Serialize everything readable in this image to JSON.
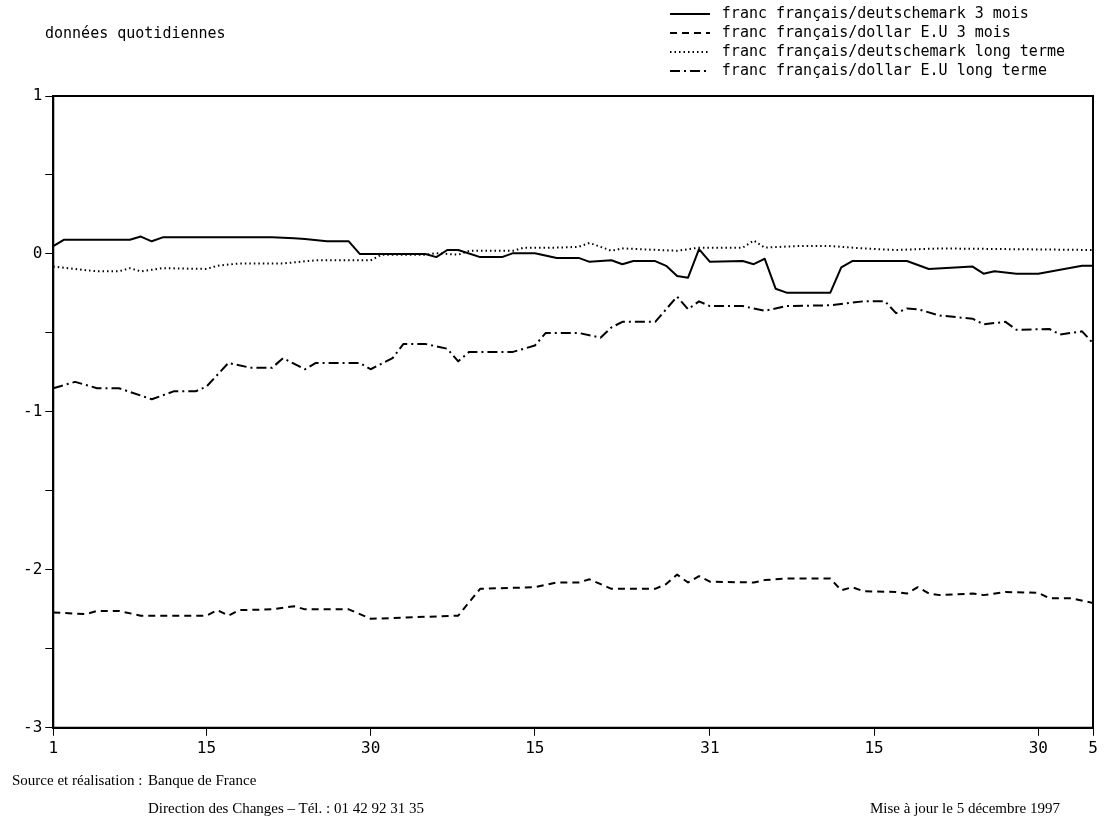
{
  "chart_data": {
    "type": "line",
    "title": "données quotidiennes",
    "xlim": [
      "1997-09-01",
      "1997-12-05"
    ],
    "xticks": [
      {
        "value": "1997-09-01",
        "label": "1"
      },
      {
        "value": "1997-09-15",
        "label": "15"
      },
      {
        "value": "1997-09-30",
        "label": "30"
      },
      {
        "value": "1997-10-15",
        "label": "15"
      },
      {
        "value": "1997-10-31",
        "label": "31"
      },
      {
        "value": "1997-11-15",
        "label": "15"
      },
      {
        "value": "1997-11-30",
        "label": "30"
      },
      {
        "value": "1997-12-05",
        "label": "5"
      }
    ],
    "ylim": [
      -3,
      1
    ],
    "yticks": [
      -3,
      {
        "value": -2.5,
        "label": null
      },
      -2,
      {
        "value": -1.5,
        "label": null
      },
      -1,
      {
        "value": -0.5,
        "label": null
      },
      0,
      {
        "value": 0.5,
        "label": null
      },
      1
    ],
    "grid": false,
    "legend": "top right",
    "marker": "none",
    "series": [
      {
        "name": "franc français/deutschemark 3 mois",
        "color": "#000000",
        "line_style": "solid",
        "x": [
          "1997-09-01",
          "1997-09-02",
          "1997-09-08",
          "1997-09-09",
          "1997-09-10",
          "1997-09-11",
          "1997-09-21",
          "1997-09-23",
          "1997-09-24",
          "1997-09-26",
          "1997-09-28",
          "1997-09-29",
          "1997-10-05",
          "1997-10-06",
          "1997-10-07",
          "1997-10-08",
          "1997-10-10",
          "1997-10-12",
          "1997-10-13",
          "1997-10-15",
          "1997-10-17",
          "1997-10-19",
          "1997-10-20",
          "1997-10-22",
          "1997-10-23",
          "1997-10-24",
          "1997-10-26",
          "1997-10-27",
          "1997-10-28",
          "1997-10-29",
          "1997-10-30",
          "1997-10-31",
          "1997-11-03",
          "1997-11-04",
          "1997-11-05",
          "1997-11-06",
          "1997-11-07",
          "1997-11-11",
          "1997-11-12",
          "1997-11-13",
          "1997-11-18",
          "1997-11-20",
          "1997-11-24",
          "1997-11-25",
          "1997-11-26",
          "1997-11-28",
          "1997-11-30",
          "1997-12-02",
          "1997-12-04",
          "1997-12-05"
        ],
        "values": [
          0.05,
          0.09,
          0.09,
          0.11,
          0.08,
          0.105,
          0.105,
          0.1,
          0.095,
          0.08,
          0.08,
          0,
          0,
          -0.02,
          0.025,
          0.025,
          -0.02,
          -0.02,
          0.005,
          0.005,
          -0.025,
          -0.025,
          -0.05,
          -0.04,
          -0.065,
          -0.045,
          -0.045,
          -0.075,
          -0.14,
          -0.15,
          0.03,
          -0.05,
          -0.045,
          -0.065,
          -0.03,
          -0.22,
          -0.245,
          -0.245,
          -0.085,
          -0.045,
          -0.045,
          -0.095,
          -0.08,
          -0.125,
          -0.11,
          -0.125,
          -0.125,
          -0.1,
          -0.075,
          -0.075
        ]
      },
      {
        "name": "franc français/dollar E.U 3 mois",
        "color": "#000000",
        "line_style": "dashed",
        "x": [
          "1997-09-01",
          "1997-09-04",
          "1997-09-05",
          "1997-09-07",
          "1997-09-09",
          "1997-09-15",
          "1997-09-16",
          "1997-09-17",
          "1997-09-18",
          "1997-09-21",
          "1997-09-23",
          "1997-09-24",
          "1997-09-28",
          "1997-09-30",
          "1997-10-08",
          "1997-10-10",
          "1997-10-15",
          "1997-10-17",
          "1997-10-19",
          "1997-10-20",
          "1997-10-22",
          "1997-10-26",
          "1997-10-27",
          "1997-10-28",
          "1997-10-29",
          "1997-10-30",
          "1997-10-31",
          "1997-11-04",
          "1997-11-05",
          "1997-11-07",
          "1997-11-11",
          "1997-11-12",
          "1997-11-13",
          "1997-11-14",
          "1997-11-17",
          "1997-11-18",
          "1997-11-19",
          "1997-11-20",
          "1997-11-21",
          "1997-11-24",
          "1997-11-25",
          "1997-11-27",
          "1997-11-30",
          "1997-12-01",
          "1997-12-03",
          "1997-12-05"
        ],
        "values": [
          -2.27,
          -2.28,
          -2.26,
          -2.26,
          -2.29,
          -2.29,
          -2.255,
          -2.29,
          -2.255,
          -2.25,
          -2.23,
          -2.25,
          -2.25,
          -2.31,
          -2.29,
          -2.12,
          -2.11,
          -2.08,
          -2.08,
          -2.06,
          -2.12,
          -2.12,
          -2.09,
          -2.03,
          -2.08,
          -2.04,
          -2.075,
          -2.08,
          -2.065,
          -2.055,
          -2.055,
          -2.13,
          -2.11,
          -2.135,
          -2.14,
          -2.15,
          -2.11,
          -2.15,
          -2.16,
          -2.15,
          -2.16,
          -2.14,
          -2.145,
          -2.18,
          -2.18,
          -2.21
        ]
      },
      {
        "name": "franc français/deutschemark long terme",
        "color": "#000000",
        "line_style": "dotted",
        "x": [
          "1997-09-01",
          "1997-09-05",
          "1997-09-07",
          "1997-09-08",
          "1997-09-09",
          "1997-09-11",
          "1997-09-15",
          "1997-09-16",
          "1997-09-18",
          "1997-09-22",
          "1997-09-25",
          "1997-09-30",
          "1997-10-01",
          "1997-10-05",
          "1997-10-06",
          "1997-10-08",
          "1997-10-09",
          "1997-10-13",
          "1997-10-14",
          "1997-10-17",
          "1997-10-19",
          "1997-10-20",
          "1997-10-22",
          "1997-10-23",
          "1997-10-28",
          "1997-10-30",
          "1997-11-03",
          "1997-11-04",
          "1997-11-05",
          "1997-11-08",
          "1997-11-11",
          "1997-11-14",
          "1997-11-17",
          "1997-11-21",
          "1997-12-05"
        ],
        "values": [
          -0.08,
          -0.11,
          -0.11,
          -0.09,
          -0.11,
          -0.09,
          -0.095,
          -0.075,
          -0.06,
          -0.06,
          -0.04,
          -0.04,
          -0.005,
          -0.005,
          0.005,
          -0.005,
          0.02,
          0.02,
          0.04,
          0.04,
          0.045,
          0.07,
          0.02,
          0.035,
          0.02,
          0.04,
          0.04,
          0.085,
          0.04,
          0.05,
          0.05,
          0.035,
          0.025,
          0.035,
          0.025
        ]
      },
      {
        "name": "franc français/dollar E.U long terme",
        "color": "#000000",
        "line_style": "dashdot",
        "x": [
          "1997-09-01",
          "1997-09-03",
          "1997-09-05",
          "1997-09-07",
          "1997-09-10",
          "1997-09-12",
          "1997-09-14",
          "1997-09-15",
          "1997-09-17",
          "1997-09-19",
          "1997-09-21",
          "1997-09-22",
          "1997-09-24",
          "1997-09-25",
          "1997-09-29",
          "1997-09-30",
          "1997-10-02",
          "1997-10-03",
          "1997-10-05",
          "1997-10-07",
          "1997-10-08",
          "1997-10-09",
          "1997-10-13",
          "1997-10-15",
          "1997-10-16",
          "1997-10-19",
          "1997-10-21",
          "1997-10-22",
          "1997-10-23",
          "1997-10-26",
          "1997-10-28",
          "1997-10-29",
          "1997-10-30",
          "1997-10-31",
          "1997-11-03",
          "1997-11-05",
          "1997-11-07",
          "1997-11-11",
          "1997-11-14",
          "1997-11-16",
          "1997-11-17",
          "1997-11-18",
          "1997-11-19",
          "1997-11-21",
          "1997-11-24",
          "1997-11-25",
          "1997-11-27",
          "1997-11-28",
          "1997-12-01",
          "1997-12-02",
          "1997-12-04",
          "1997-12-05"
        ],
        "values": [
          -0.85,
          -0.81,
          -0.85,
          -0.85,
          -0.92,
          -0.87,
          -0.87,
          -0.84,
          -0.69,
          -0.72,
          -0.72,
          -0.66,
          -0.73,
          -0.69,
          -0.69,
          -0.73,
          -0.66,
          -0.57,
          -0.57,
          -0.6,
          -0.68,
          -0.62,
          -0.62,
          -0.58,
          -0.5,
          -0.5,
          -0.53,
          -0.465,
          -0.43,
          -0.43,
          -0.27,
          -0.35,
          -0.3,
          -0.33,
          -0.33,
          -0.36,
          -0.33,
          -0.325,
          -0.3,
          -0.3,
          -0.375,
          -0.345,
          -0.35,
          -0.39,
          -0.41,
          -0.445,
          -0.43,
          -0.48,
          -0.475,
          -0.51,
          -0.49,
          -0.565
        ]
      }
    ],
    "annotations": [
      "Source et réalisation :",
      "Banque de France",
      "Direction des Changes – Tél. : 01 42 92 31 35",
      "Mise à jour le 5 décembre 1997"
    ]
  }
}
